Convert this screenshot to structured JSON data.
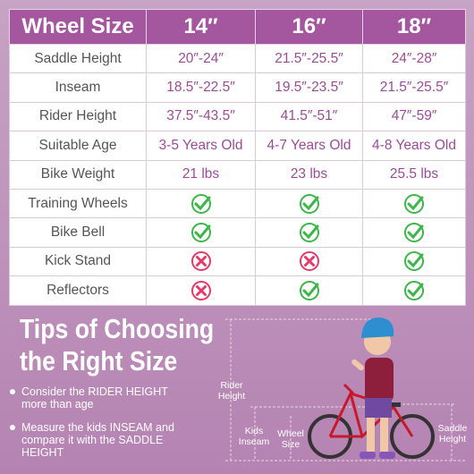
{
  "table": {
    "header": [
      "Wheel Size",
      "14″",
      "16″",
      "18″"
    ],
    "rows": [
      [
        "Saddle Height",
        "20″-24″",
        "21.5″-25.5″",
        "24″-28″"
      ],
      [
        "Inseam",
        "18.5″-22.5″",
        "19.5″-23.5″",
        "21.5″-25.5″"
      ],
      [
        "Rider Height",
        "37.5″-43.5″",
        "41.5″-51″",
        "47″-59″"
      ],
      [
        "Suitable Age",
        "3-5 Years Old",
        "4-7 Years Old",
        "4-8 Years Old"
      ],
      [
        "Bike Weight",
        "21 lbs",
        "23 lbs",
        "25.5 lbs"
      ],
      [
        "Training Wheels",
        true,
        true,
        true
      ],
      [
        "Bike Bell",
        true,
        true,
        true
      ],
      [
        "Kick Stand",
        false,
        false,
        true
      ],
      [
        "Reflectors",
        false,
        true,
        true
      ]
    ]
  },
  "tips": {
    "title": [
      "Tips of Choosing",
      "the Right Size"
    ],
    "bullets": [
      "Consider the RIDER HEIGHT more than age",
      "Measure the kids INSEAM and compare it with the SADDLE HEIGHT"
    ]
  },
  "diagram": {
    "labels": [
      "Rider Height",
      "Kids Inseam",
      "Wheel Size",
      "Saddle Height"
    ]
  }
}
